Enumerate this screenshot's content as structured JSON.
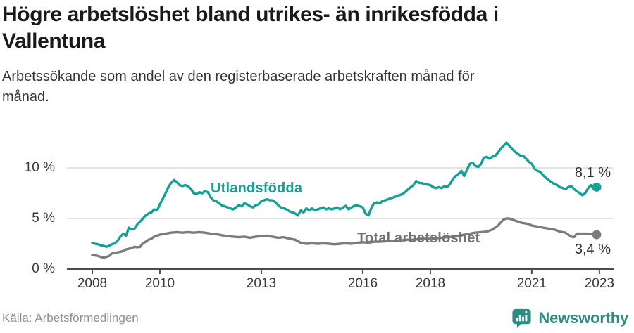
{
  "header": {
    "title_lines": [
      "Högre arbetslöshet bland utrikes- än inrikesfödda i",
      "Vallentuna"
    ],
    "subtitle_lines": [
      "Arbetssökande som andel av den registerbaserade arbetskraften månad för",
      "månad."
    ]
  },
  "footer": {
    "source": "Källa: Arbetsförmedlingen",
    "brand": "Newsworthy"
  },
  "colors": {
    "teal": "#14a095",
    "gray": "#7c7c7c",
    "grid": "#dcdcdc",
    "axis": "#4d4d4d",
    "brand_teal": "#2f8c85"
  },
  "chart_data": {
    "type": "line",
    "title": "Högre arbetslöshet bland utrikes- än inrikesfödda i Vallentuna",
    "subtitle": "Arbetssökande som andel av den registerbaserade arbetskraften månad för månad.",
    "unit": "%",
    "x_range": [
      2007.25,
      2023.42
    ],
    "y_range": [
      0,
      15
    ],
    "grid": true,
    "legend_position": "inline-labels",
    "x_tick_years": [
      2008,
      2010,
      2013,
      2016,
      2018,
      2021,
      2023
    ],
    "x_tick_labels": [
      "2008",
      "2010",
      "2013",
      "2016",
      "2018",
      "2021",
      "2023"
    ],
    "y_tick_values": [
      0,
      5,
      10
    ],
    "y_tick_labels": [
      "0 %",
      "5 %",
      "10 %"
    ],
    "series": [
      {
        "name": "Utlandsfödda",
        "color": "#14a095",
        "end_label": "8,1 %",
        "end_value": 8.1,
        "points": [
          [
            2008.0,
            2.6
          ],
          [
            2008.08,
            2.5
          ],
          [
            2008.17,
            2.45
          ],
          [
            2008.25,
            2.35
          ],
          [
            2008.33,
            2.3
          ],
          [
            2008.42,
            2.2
          ],
          [
            2008.5,
            2.3
          ],
          [
            2008.58,
            2.45
          ],
          [
            2008.67,
            2.55
          ],
          [
            2008.75,
            2.8
          ],
          [
            2008.83,
            3.2
          ],
          [
            2008.92,
            3.5
          ],
          [
            2009.0,
            3.3
          ],
          [
            2009.08,
            4.1
          ],
          [
            2009.17,
            3.9
          ],
          [
            2009.25,
            4.0
          ],
          [
            2009.33,
            4.4
          ],
          [
            2009.42,
            4.7
          ],
          [
            2009.5,
            5.0
          ],
          [
            2009.58,
            5.3
          ],
          [
            2009.67,
            5.5
          ],
          [
            2009.75,
            5.6
          ],
          [
            2009.83,
            5.9
          ],
          [
            2009.92,
            5.8
          ],
          [
            2010.0,
            6.4
          ],
          [
            2010.08,
            6.9
          ],
          [
            2010.17,
            7.5
          ],
          [
            2010.25,
            8.1
          ],
          [
            2010.33,
            8.5
          ],
          [
            2010.42,
            8.8
          ],
          [
            2010.5,
            8.6
          ],
          [
            2010.58,
            8.3
          ],
          [
            2010.67,
            8.2
          ],
          [
            2010.75,
            8.3
          ],
          [
            2010.83,
            8.2
          ],
          [
            2010.92,
            7.9
          ],
          [
            2011.0,
            7.5
          ],
          [
            2011.08,
            7.4
          ],
          [
            2011.17,
            7.6
          ],
          [
            2011.25,
            7.5
          ],
          [
            2011.33,
            7.7
          ],
          [
            2011.42,
            7.6
          ],
          [
            2011.5,
            7.1
          ],
          [
            2011.58,
            6.8
          ],
          [
            2011.67,
            6.7
          ],
          [
            2011.75,
            6.5
          ],
          [
            2011.83,
            6.3
          ],
          [
            2011.92,
            6.2
          ],
          [
            2012.0,
            6.1
          ],
          [
            2012.08,
            6.0
          ],
          [
            2012.17,
            5.9
          ],
          [
            2012.25,
            6.1
          ],
          [
            2012.33,
            6.3
          ],
          [
            2012.42,
            6.2
          ],
          [
            2012.5,
            6.5
          ],
          [
            2012.58,
            6.4
          ],
          [
            2012.67,
            6.2
          ],
          [
            2012.75,
            6.1
          ],
          [
            2012.83,
            6.3
          ],
          [
            2012.92,
            6.4
          ],
          [
            2013.0,
            6.7
          ],
          [
            2013.08,
            6.8
          ],
          [
            2013.17,
            6.9
          ],
          [
            2013.25,
            6.8
          ],
          [
            2013.33,
            6.8
          ],
          [
            2013.42,
            6.6
          ],
          [
            2013.5,
            6.3
          ],
          [
            2013.58,
            6.1
          ],
          [
            2013.67,
            6.0
          ],
          [
            2013.75,
            5.9
          ],
          [
            2013.83,
            5.7
          ],
          [
            2013.92,
            5.6
          ],
          [
            2014.0,
            5.5
          ],
          [
            2014.08,
            5.3
          ],
          [
            2014.17,
            5.8
          ],
          [
            2014.25,
            5.6
          ],
          [
            2014.33,
            6.0
          ],
          [
            2014.42,
            5.8
          ],
          [
            2014.5,
            6.0
          ],
          [
            2014.58,
            5.8
          ],
          [
            2014.67,
            5.9
          ],
          [
            2014.75,
            6.0
          ],
          [
            2014.83,
            6.1
          ],
          [
            2014.92,
            5.9
          ],
          [
            2015.0,
            6.0
          ],
          [
            2015.08,
            5.9
          ],
          [
            2015.17,
            6.0
          ],
          [
            2015.25,
            6.1
          ],
          [
            2015.33,
            5.9
          ],
          [
            2015.42,
            6.1
          ],
          [
            2015.5,
            6.25
          ],
          [
            2015.58,
            5.9
          ],
          [
            2015.67,
            6.1
          ],
          [
            2015.75,
            6.25
          ],
          [
            2015.83,
            6.3
          ],
          [
            2015.92,
            6.2
          ],
          [
            2016.0,
            6.1
          ],
          [
            2016.08,
            5.5
          ],
          [
            2016.17,
            5.3
          ],
          [
            2016.25,
            6.0
          ],
          [
            2016.33,
            6.5
          ],
          [
            2016.42,
            6.6
          ],
          [
            2016.5,
            6.5
          ],
          [
            2016.58,
            6.7
          ],
          [
            2016.67,
            6.8
          ],
          [
            2016.75,
            6.9
          ],
          [
            2016.83,
            7.0
          ],
          [
            2016.92,
            7.1
          ],
          [
            2017.0,
            7.2
          ],
          [
            2017.08,
            7.3
          ],
          [
            2017.17,
            7.4
          ],
          [
            2017.25,
            7.6
          ],
          [
            2017.33,
            7.85
          ],
          [
            2017.42,
            8.1
          ],
          [
            2017.5,
            8.3
          ],
          [
            2017.58,
            8.7
          ],
          [
            2017.67,
            8.5
          ],
          [
            2017.75,
            8.5
          ],
          [
            2017.83,
            8.4
          ],
          [
            2017.92,
            8.35
          ],
          [
            2018.0,
            8.3
          ],
          [
            2018.08,
            8.1
          ],
          [
            2018.17,
            8.0
          ],
          [
            2018.25,
            8.1
          ],
          [
            2018.33,
            8.0
          ],
          [
            2018.42,
            8.2
          ],
          [
            2018.5,
            8.1
          ],
          [
            2018.58,
            8.4
          ],
          [
            2018.67,
            8.9
          ],
          [
            2018.75,
            9.2
          ],
          [
            2018.83,
            9.4
          ],
          [
            2018.92,
            9.7
          ],
          [
            2019.0,
            9.2
          ],
          [
            2019.08,
            9.8
          ],
          [
            2019.17,
            10.4
          ],
          [
            2019.25,
            10.5
          ],
          [
            2019.33,
            10.2
          ],
          [
            2019.42,
            10.1
          ],
          [
            2019.5,
            10.4
          ],
          [
            2019.58,
            11.0
          ],
          [
            2019.67,
            11.1
          ],
          [
            2019.75,
            10.9
          ],
          [
            2019.83,
            11.1
          ],
          [
            2019.92,
            11.2
          ],
          [
            2020.0,
            11.5
          ],
          [
            2020.08,
            11.9
          ],
          [
            2020.17,
            12.2
          ],
          [
            2020.25,
            12.5
          ],
          [
            2020.33,
            12.2
          ],
          [
            2020.42,
            11.9
          ],
          [
            2020.5,
            11.6
          ],
          [
            2020.58,
            11.4
          ],
          [
            2020.67,
            11.2
          ],
          [
            2020.75,
            11.2
          ],
          [
            2020.83,
            10.9
          ],
          [
            2020.92,
            10.6
          ],
          [
            2021.0,
            10.4
          ],
          [
            2021.08,
            9.9
          ],
          [
            2021.17,
            9.7
          ],
          [
            2021.25,
            9.6
          ],
          [
            2021.33,
            9.3
          ],
          [
            2021.42,
            9.0
          ],
          [
            2021.5,
            8.8
          ],
          [
            2021.58,
            8.6
          ],
          [
            2021.67,
            8.4
          ],
          [
            2021.75,
            8.3
          ],
          [
            2021.83,
            8.1
          ],
          [
            2021.92,
            8.0
          ],
          [
            2022.0,
            7.9
          ],
          [
            2022.08,
            8.1
          ],
          [
            2022.17,
            8.2
          ],
          [
            2022.25,
            7.9
          ],
          [
            2022.33,
            7.7
          ],
          [
            2022.42,
            7.5
          ],
          [
            2022.5,
            7.3
          ],
          [
            2022.58,
            7.5
          ],
          [
            2022.67,
            8.0
          ],
          [
            2022.75,
            8.3
          ],
          [
            2022.83,
            7.9
          ],
          [
            2022.92,
            8.1
          ]
        ]
      },
      {
        "name": "Total arbetslöshet",
        "color": "#7c7c7c",
        "end_label": "3,4 %",
        "end_value": 3.4,
        "points": [
          [
            2008.0,
            1.4
          ],
          [
            2008.08,
            1.35
          ],
          [
            2008.17,
            1.3
          ],
          [
            2008.25,
            1.2
          ],
          [
            2008.33,
            1.15
          ],
          [
            2008.42,
            1.2
          ],
          [
            2008.5,
            1.3
          ],
          [
            2008.58,
            1.55
          ],
          [
            2008.67,
            1.6
          ],
          [
            2008.75,
            1.65
          ],
          [
            2008.83,
            1.7
          ],
          [
            2008.92,
            1.8
          ],
          [
            2009.0,
            1.95
          ],
          [
            2009.08,
            2.0
          ],
          [
            2009.17,
            2.1
          ],
          [
            2009.25,
            2.2
          ],
          [
            2009.33,
            2.15
          ],
          [
            2009.42,
            2.2
          ],
          [
            2009.5,
            2.55
          ],
          [
            2009.58,
            2.7
          ],
          [
            2009.67,
            2.9
          ],
          [
            2009.75,
            3.0
          ],
          [
            2009.83,
            3.2
          ],
          [
            2009.92,
            3.3
          ],
          [
            2010.0,
            3.4
          ],
          [
            2010.17,
            3.5
          ],
          [
            2010.33,
            3.6
          ],
          [
            2010.5,
            3.65
          ],
          [
            2010.67,
            3.6
          ],
          [
            2010.83,
            3.65
          ],
          [
            2011.0,
            3.6
          ],
          [
            2011.17,
            3.65
          ],
          [
            2011.33,
            3.6
          ],
          [
            2011.5,
            3.5
          ],
          [
            2011.67,
            3.45
          ],
          [
            2011.83,
            3.35
          ],
          [
            2012.0,
            3.25
          ],
          [
            2012.17,
            3.2
          ],
          [
            2012.33,
            3.15
          ],
          [
            2012.5,
            3.2
          ],
          [
            2012.67,
            3.1
          ],
          [
            2012.83,
            3.2
          ],
          [
            2013.0,
            3.25
          ],
          [
            2013.17,
            3.3
          ],
          [
            2013.33,
            3.2
          ],
          [
            2013.5,
            3.1
          ],
          [
            2013.67,
            3.15
          ],
          [
            2013.83,
            3.0
          ],
          [
            2014.0,
            2.9
          ],
          [
            2014.17,
            2.6
          ],
          [
            2014.33,
            2.5
          ],
          [
            2014.5,
            2.55
          ],
          [
            2014.67,
            2.5
          ],
          [
            2014.83,
            2.55
          ],
          [
            2015.0,
            2.5
          ],
          [
            2015.17,
            2.45
          ],
          [
            2015.33,
            2.5
          ],
          [
            2015.5,
            2.55
          ],
          [
            2015.67,
            2.5
          ],
          [
            2015.83,
            2.6
          ],
          [
            2016.0,
            2.65
          ],
          [
            2016.17,
            2.6
          ],
          [
            2016.33,
            2.7
          ],
          [
            2016.5,
            2.7
          ],
          [
            2016.67,
            2.75
          ],
          [
            2016.83,
            2.8
          ],
          [
            2017.0,
            2.8
          ],
          [
            2017.17,
            2.85
          ],
          [
            2017.33,
            2.9
          ],
          [
            2017.5,
            2.9
          ],
          [
            2017.67,
            2.95
          ],
          [
            2017.83,
            3.0
          ],
          [
            2018.0,
            3.0
          ],
          [
            2018.17,
            3.05
          ],
          [
            2018.33,
            3.1
          ],
          [
            2018.5,
            3.15
          ],
          [
            2018.67,
            3.2
          ],
          [
            2018.83,
            3.3
          ],
          [
            2019.0,
            3.4
          ],
          [
            2019.17,
            3.5
          ],
          [
            2019.33,
            3.6
          ],
          [
            2019.5,
            3.65
          ],
          [
            2019.67,
            3.7
          ],
          [
            2019.83,
            3.9
          ],
          [
            2020.0,
            4.3
          ],
          [
            2020.08,
            4.6
          ],
          [
            2020.17,
            4.9
          ],
          [
            2020.25,
            5.0
          ],
          [
            2020.33,
            5.0
          ],
          [
            2020.42,
            4.9
          ],
          [
            2020.5,
            4.8
          ],
          [
            2020.58,
            4.7
          ],
          [
            2020.67,
            4.6
          ],
          [
            2020.75,
            4.55
          ],
          [
            2020.83,
            4.5
          ],
          [
            2020.92,
            4.45
          ],
          [
            2021.0,
            4.3
          ],
          [
            2021.17,
            4.2
          ],
          [
            2021.33,
            4.1
          ],
          [
            2021.5,
            4.0
          ],
          [
            2021.67,
            3.9
          ],
          [
            2021.83,
            3.7
          ],
          [
            2022.0,
            3.6
          ],
          [
            2022.08,
            3.4
          ],
          [
            2022.17,
            3.2
          ],
          [
            2022.25,
            3.15
          ],
          [
            2022.33,
            3.5
          ],
          [
            2022.5,
            3.5
          ],
          [
            2022.67,
            3.5
          ],
          [
            2022.83,
            3.45
          ],
          [
            2022.92,
            3.4
          ]
        ]
      }
    ]
  }
}
